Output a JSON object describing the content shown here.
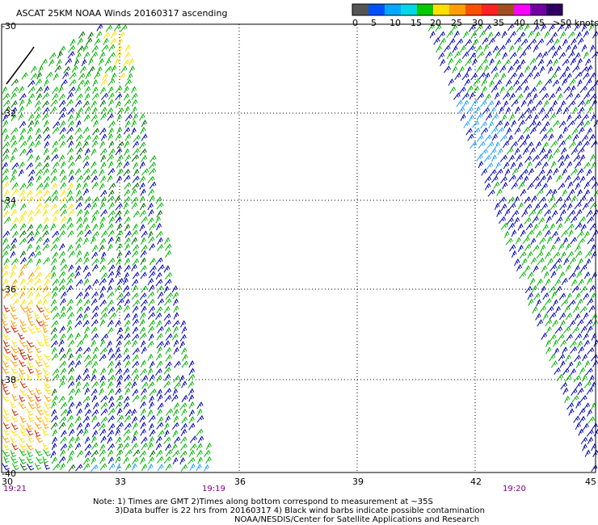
{
  "title": "ASCAT 25KM NOAA Winds 20160317 ascending",
  "legend": {
    "colors": [
      "#555555",
      "#0050ff",
      "#00a8ff",
      "#00d8e8",
      "#00cc00",
      "#ffe000",
      "#ffa000",
      "#ff5000",
      "#ff2020",
      "#a05020",
      "#ff00ff",
      "#7000a0",
      "#300060"
    ],
    "labels": [
      "0",
      "5",
      "10",
      "15",
      "20",
      "25",
      "30",
      "35",
      "40",
      "45",
      ">50 knots"
    ]
  },
  "axes": {
    "lon_labels": [
      "30",
      "33",
      "36",
      "39",
      "42",
      "45"
    ],
    "lat_labels": [
      "-30",
      "-32",
      "-34",
      "-36",
      "-38",
      "-40"
    ]
  },
  "times": [
    "19:21",
    "19:19",
    "19:20"
  ],
  "notes": [
    "Note: 1) Times are GMT 2)Times along bottom correspond to measurement at ~35S",
    "3)Data buffer is 22 hrs from 20160317 4) Black wind barbs indicate possible contamination",
    "NOAA/NESDIS/Center for Satellite Applications and Research"
  ]
}
